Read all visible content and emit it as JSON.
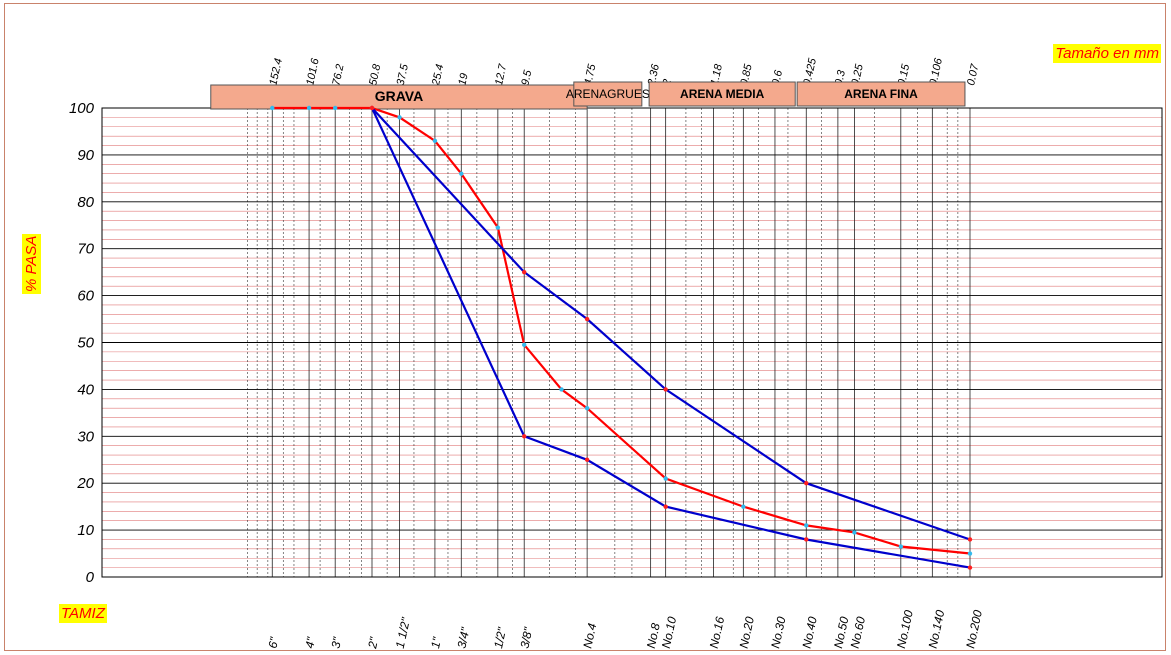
{
  "labels": {
    "size_axis": "Tamaño en mm",
    "y_axis": "% PASA",
    "sieve_axis": "TAMIZ"
  },
  "chart_data": {
    "type": "line",
    "title": "",
    "xlabel": "TAMIZ",
    "ylabel": "% PASA",
    "x_top_label": "Tamaño en mm",
    "x_scale": "log (reversed, mm)",
    "ylim": [
      0,
      100
    ],
    "y_ticks": [
      0,
      10,
      20,
      30,
      40,
      50,
      60,
      70,
      80,
      90,
      100
    ],
    "grid": true,
    "sieves": [
      {
        "name": "6\"",
        "mm": "152.4"
      },
      {
        "name": "4\"",
        "mm": "101.6"
      },
      {
        "name": "3\"",
        "mm": "76.2"
      },
      {
        "name": "2\"",
        "mm": "50.8"
      },
      {
        "name": "1 1/2\"",
        "mm": "37.5"
      },
      {
        "name": "1\"",
        "mm": "25.4"
      },
      {
        "name": "3/4\"",
        "mm": "19"
      },
      {
        "name": "1/2\"",
        "mm": "12.7"
      },
      {
        "name": "3/8\"",
        "mm": "9.5"
      },
      {
        "name": "No.4",
        "mm": "4.75"
      },
      {
        "name": "No.8",
        "mm": "2.36"
      },
      {
        "name": "No.10",
        "mm": "2"
      },
      {
        "name": "No.16",
        "mm": "1.18"
      },
      {
        "name": "No.20",
        "mm": "0.85"
      },
      {
        "name": "No.30",
        "mm": "0.6"
      },
      {
        "name": "No.40",
        "mm": "0.425"
      },
      {
        "name": "No.50",
        "mm": "0.3"
      },
      {
        "name": "No.60",
        "mm": "0.25"
      },
      {
        "name": "No.100",
        "mm": "0.15"
      },
      {
        "name": "No.140",
        "mm": "0.106"
      },
      {
        "name": "No.200",
        "mm": "0.07"
      }
    ],
    "zones": [
      {
        "label": "GRAVA",
        "from": 300,
        "to": 4.75
      },
      {
        "label": "ARENAGRUES",
        "from": 5.5,
        "to": 2.6
      },
      {
        "label": "ARENA MEDIA",
        "from": 2.4,
        "to": 0.48
      },
      {
        "label": "ARENA FINA",
        "from": 0.47,
        "to": 0.074
      }
    ],
    "series": [
      {
        "color": "#ff0000",
        "points": [
          [
            152.4,
            100
          ],
          [
            101.6,
            100
          ],
          [
            76.2,
            100
          ],
          [
            50.8,
            100
          ],
          [
            37.5,
            98
          ],
          [
            25.4,
            93
          ],
          [
            19,
            86
          ],
          [
            12.7,
            74.5
          ],
          [
            9.5,
            49.5
          ],
          [
            6.3,
            40
          ],
          [
            4.75,
            36
          ],
          [
            2,
            21
          ],
          [
            0.85,
            15
          ],
          [
            0.425,
            11
          ],
          [
            0.25,
            9.5
          ],
          [
            0.15,
            6.5
          ],
          [
            0.07,
            5
          ]
        ]
      },
      {
        "color": "#0000cc",
        "points": [
          [
            50.8,
            100
          ],
          [
            9.5,
            65
          ],
          [
            4.75,
            55
          ],
          [
            2,
            40
          ],
          [
            0.425,
            20
          ],
          [
            0.07,
            8
          ]
        ]
      },
      {
        "color": "#0000cc",
        "points": [
          [
            50.8,
            100
          ],
          [
            9.5,
            30
          ],
          [
            4.75,
            25
          ],
          [
            2,
            15
          ],
          [
            0.425,
            8
          ],
          [
            0.07,
            2
          ]
        ]
      }
    ],
    "colors": {
      "zone_fill": "#f4a98d",
      "minor_grid": "#e07a7a",
      "major_grid": "#000000",
      "highlight_bg": "#ffff00",
      "highlight_text": "#ff0000",
      "marker_red": "#ff2020",
      "marker_cyan": "#33bbee"
    }
  }
}
